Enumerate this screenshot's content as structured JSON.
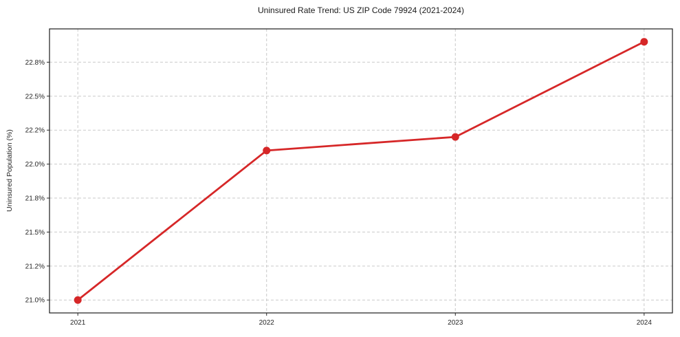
{
  "figure": {
    "title": "Uninsured Rate Trend: US ZIP Code 79924 (2021-2024)"
  },
  "chart_data": {
    "type": "line",
    "title": "Uninsured Rate Trend: US ZIP Code 79924 (2021-2024)",
    "xlabel": "",
    "ylabel": "Uninsured Population (%)",
    "x": [
      2021,
      2022,
      2023,
      2024
    ],
    "values": [
      21.0,
      22.1,
      22.2,
      22.9
    ],
    "value_unit": "%",
    "xlim": [
      2020.85,
      2024.15
    ],
    "ylim": [
      20.905,
      22.995
    ],
    "xticks": {
      "values": [
        2021,
        2022,
        2023,
        2024
      ],
      "labels": [
        "2021",
        "2022",
        "2023",
        "2024"
      ]
    },
    "yticks": {
      "values": [
        21.0,
        21.25,
        21.5,
        21.75,
        22.0,
        22.25,
        22.5,
        22.75
      ],
      "labels": [
        "21.0%",
        "21.2%",
        "21.5%",
        "21.8%",
        "22.0%",
        "22.2%",
        "22.5%",
        "22.8%"
      ]
    },
    "grid": true,
    "grid_style": "dashed",
    "legend_position": "none",
    "colors": {
      "line": "#d62728",
      "marker": "#d62728",
      "grid": "#c9c9c9",
      "spine": "#1a1a1a",
      "tick": "#262626",
      "background": "#ffffff"
    },
    "line_width": 2.8,
    "marker_size": 5.5
  }
}
